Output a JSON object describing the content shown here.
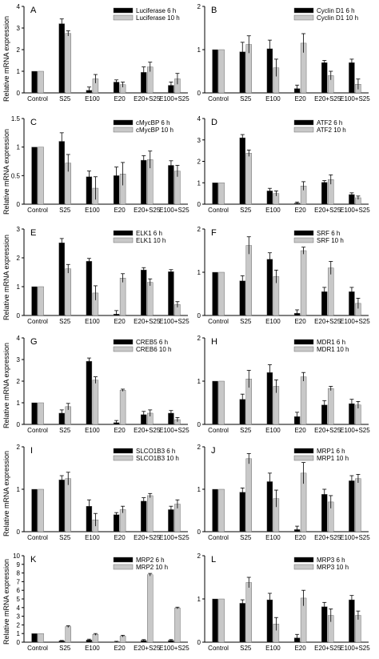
{
  "figure": {
    "ylabel": "Relative mRNA expression",
    "colors": {
      "h6": "#000000",
      "h10": "#c8c8c8"
    }
  },
  "chart_data": [
    {
      "type": "bar",
      "panel": "A",
      "categories": [
        "Control",
        "S25",
        "E100",
        "E20",
        "E20+S25",
        "E100+S25"
      ],
      "ylim": [
        0,
        4
      ],
      "yticks": [
        0,
        1,
        2,
        3,
        4
      ],
      "series": [
        {
          "name": "Luciferase 6 h",
          "values": [
            1.0,
            3.2,
            0.12,
            0.5,
            0.95,
            0.35
          ],
          "errors": [
            0,
            0.22,
            0.15,
            0.1,
            0.25,
            0.15
          ]
        },
        {
          "name": "Luciferase 10 h",
          "values": [
            1.0,
            2.75,
            0.65,
            0.38,
            1.2,
            0.65
          ],
          "errors": [
            0,
            0.12,
            0.2,
            0.12,
            0.22,
            0.25
          ]
        }
      ]
    },
    {
      "type": "bar",
      "panel": "B",
      "categories": [
        "Control",
        "S25",
        "E100",
        "E20",
        "E20+S25",
        "E100+S25"
      ],
      "ylim": [
        0,
        2
      ],
      "yticks": [
        0,
        1,
        2
      ],
      "series": [
        {
          "name": "Cyclin D1 6 h",
          "values": [
            1.0,
            0.95,
            1.02,
            0.1,
            0.7,
            0.7
          ],
          "errors": [
            0,
            0.22,
            0.2,
            0.08,
            0.05,
            0.08
          ]
        },
        {
          "name": "Cyclin D1 10 h",
          "values": [
            1.0,
            1.12,
            0.58,
            1.15,
            0.4,
            0.2
          ],
          "errors": [
            0,
            0.2,
            0.2,
            0.22,
            0.1,
            0.12
          ]
        }
      ]
    },
    {
      "type": "bar",
      "panel": "C",
      "categories": [
        "Control",
        "S25",
        "E100",
        "E20",
        "E20+S25",
        "E100+S25"
      ],
      "ylim": [
        0,
        1.5
      ],
      "yticks": [
        0,
        0.5,
        1,
        1.5
      ],
      "series": [
        {
          "name": "cMycBP 6 h",
          "values": [
            1.0,
            1.1,
            0.48,
            0.5,
            0.77,
            0.68
          ],
          "errors": [
            0,
            0.15,
            0.1,
            0.15,
            0.08,
            0.08
          ]
        },
        {
          "name": "cMycBP 10 h",
          "values": [
            1.0,
            0.72,
            0.28,
            0.53,
            0.78,
            0.58
          ],
          "errors": [
            0,
            0.15,
            0.2,
            0.2,
            0.15,
            0.1
          ]
        }
      ]
    },
    {
      "type": "bar",
      "panel": "D",
      "categories": [
        "Control",
        "S25",
        "E100",
        "E20",
        "E20+S25",
        "E100+S25"
      ],
      "ylim": [
        0,
        4
      ],
      "yticks": [
        0,
        1,
        2,
        3,
        4
      ],
      "series": [
        {
          "name": "ATF2 6 h",
          "values": [
            1.0,
            3.1,
            0.62,
            0.05,
            1.02,
            0.45
          ],
          "errors": [
            0,
            0.15,
            0.12,
            0.05,
            0.08,
            0.08
          ]
        },
        {
          "name": "ATF2 10 h",
          "values": [
            1.0,
            2.38,
            0.5,
            0.85,
            1.15,
            0.3
          ],
          "errors": [
            0,
            0.15,
            0.12,
            0.2,
            0.22,
            0.08
          ]
        }
      ]
    },
    {
      "type": "bar",
      "panel": "E",
      "categories": [
        "Control",
        "S25",
        "E100",
        "E20",
        "E20+S25",
        "E100+S25"
      ],
      "ylim": [
        0,
        3
      ],
      "yticks": [
        0,
        1,
        2,
        3
      ],
      "series": [
        {
          "name": "ELK1 6 h",
          "values": [
            1.0,
            2.52,
            1.88,
            0.05,
            1.58,
            1.52
          ],
          "errors": [
            0,
            0.15,
            0.1,
            0.12,
            0.08,
            0.07
          ]
        },
        {
          "name": "ELK1 10 h",
          "values": [
            1.0,
            1.62,
            0.78,
            1.3,
            1.15,
            0.38
          ],
          "errors": [
            0,
            0.15,
            0.25,
            0.15,
            0.12,
            0.1
          ]
        }
      ]
    },
    {
      "type": "bar",
      "panel": "F",
      "categories": [
        "Control",
        "S25",
        "E100",
        "E20",
        "E20+S25",
        "E100+S25"
      ],
      "ylim": [
        0,
        2
      ],
      "yticks": [
        0,
        1,
        2
      ],
      "series": [
        {
          "name": "SRF 6 h",
          "values": [
            1.0,
            0.8,
            1.3,
            0.05,
            0.55,
            0.55
          ],
          "errors": [
            0,
            0.12,
            0.15,
            0.08,
            0.1,
            0.1
          ]
        },
        {
          "name": "SRF 10 h",
          "values": [
            1.0,
            1.62,
            0.9,
            1.5,
            1.1,
            0.28
          ],
          "errors": [
            0,
            0.2,
            0.15,
            0.08,
            0.15,
            0.12
          ]
        }
      ]
    },
    {
      "type": "bar",
      "panel": "G",
      "categories": [
        "Control",
        "S25",
        "E100",
        "E20",
        "E20+S25",
        "E100+S25"
      ],
      "ylim": [
        0,
        4
      ],
      "yticks": [
        0,
        1,
        2,
        3,
        4
      ],
      "series": [
        {
          "name": "CREB5 6 h",
          "values": [
            1.0,
            0.52,
            2.92,
            0.08,
            0.45,
            0.52
          ],
          "errors": [
            0,
            0.15,
            0.15,
            0.1,
            0.15,
            0.12
          ]
        },
        {
          "name": "CREB6 10 h",
          "values": [
            1.0,
            0.82,
            2.05,
            1.58,
            0.52,
            0.22
          ],
          "errors": [
            0,
            0.15,
            0.15,
            0.05,
            0.15,
            0.1
          ]
        }
      ]
    },
    {
      "type": "bar",
      "panel": "H",
      "categories": [
        "Control",
        "S25",
        "E100",
        "E20",
        "E20+S25",
        "E100+S25"
      ],
      "ylim": [
        0,
        2
      ],
      "yticks": [
        0,
        1,
        2
      ],
      "series": [
        {
          "name": "MDR1 6 h",
          "values": [
            1.0,
            0.58,
            1.2,
            0.18,
            0.45,
            0.48
          ],
          "errors": [
            0,
            0.12,
            0.18,
            0.1,
            0.1,
            0.1
          ]
        },
        {
          "name": "MDR1 10 h",
          "values": [
            1.0,
            1.05,
            0.88,
            1.1,
            0.83,
            0.45
          ],
          "errors": [
            0,
            0.2,
            0.15,
            0.1,
            0.05,
            0.08
          ]
        }
      ]
    },
    {
      "type": "bar",
      "panel": "I",
      "categories": [
        "Control",
        "S25",
        "E100",
        "E20",
        "E20+S25",
        "E100+S25"
      ],
      "ylim": [
        0,
        2
      ],
      "yticks": [
        0,
        1,
        2
      ],
      "series": [
        {
          "name": "SLCO1B3 6 h",
          "values": [
            1.0,
            1.22,
            0.6,
            0.4,
            0.72,
            0.52
          ],
          "errors": [
            0,
            0.1,
            0.15,
            0.05,
            0.08,
            0.08
          ]
        },
        {
          "name": "SLCO1B3 10 h",
          "values": [
            1.0,
            1.25,
            0.28,
            0.52,
            0.85,
            0.65
          ],
          "errors": [
            0,
            0.15,
            0.15,
            0.08,
            0.05,
            0.1
          ]
        }
      ]
    },
    {
      "type": "bar",
      "panel": "J",
      "categories": [
        "Control",
        "S25",
        "E100",
        "E20",
        "E20+S25",
        "E100+S25"
      ],
      "ylim": [
        0,
        2
      ],
      "yticks": [
        0,
        1,
        2
      ],
      "series": [
        {
          "name": "MRP1 6 h",
          "values": [
            1.0,
            0.93,
            1.18,
            0.05,
            0.88,
            1.2
          ],
          "errors": [
            0,
            0.1,
            0.2,
            0.08,
            0.12,
            0.12
          ]
        },
        {
          "name": "MRP1 10 h",
          "values": [
            1.0,
            1.72,
            0.78,
            1.38,
            0.7,
            1.25
          ],
          "errors": [
            0,
            0.12,
            0.2,
            0.25,
            0.15,
            0.1
          ]
        }
      ]
    },
    {
      "type": "bar",
      "panel": "K",
      "categories": [
        "Control",
        "S25",
        "E100",
        "E20",
        "E20+S25",
        "E100+S25"
      ],
      "ylim": [
        0,
        10
      ],
      "yticks": [
        0,
        1,
        2,
        3,
        4,
        5,
        6,
        7,
        8,
        9,
        10
      ],
      "series": [
        {
          "name": "MRP2 6 h",
          "values": [
            1.0,
            0.15,
            0.25,
            0.05,
            0.2,
            0.2
          ],
          "errors": [
            0,
            0.05,
            0.1,
            0.05,
            0.1,
            0.1
          ]
        },
        {
          "name": "MRP2 10 h",
          "values": [
            1.0,
            1.8,
            0.9,
            0.7,
            7.8,
            3.95
          ],
          "errors": [
            0,
            0.1,
            0.1,
            0.1,
            0.15,
            0.1
          ]
        }
      ]
    },
    {
      "type": "bar",
      "panel": "L",
      "categories": [
        "Control",
        "S25",
        "E100",
        "E20",
        "E20+S25",
        "E100+S25"
      ],
      "ylim": [
        0,
        2
      ],
      "yticks": [
        0,
        1,
        2
      ],
      "series": [
        {
          "name": "MRP3 6 h",
          "values": [
            1.0,
            0.9,
            0.98,
            0.1,
            0.82,
            0.98
          ],
          "errors": [
            0,
            0.08,
            0.15,
            0.08,
            0.1,
            0.1
          ]
        },
        {
          "name": "MRP3 10 h",
          "values": [
            1.0,
            1.38,
            0.42,
            1.02,
            0.62,
            0.62
          ],
          "errors": [
            0,
            0.12,
            0.15,
            0.18,
            0.15,
            0.1
          ]
        }
      ]
    }
  ]
}
